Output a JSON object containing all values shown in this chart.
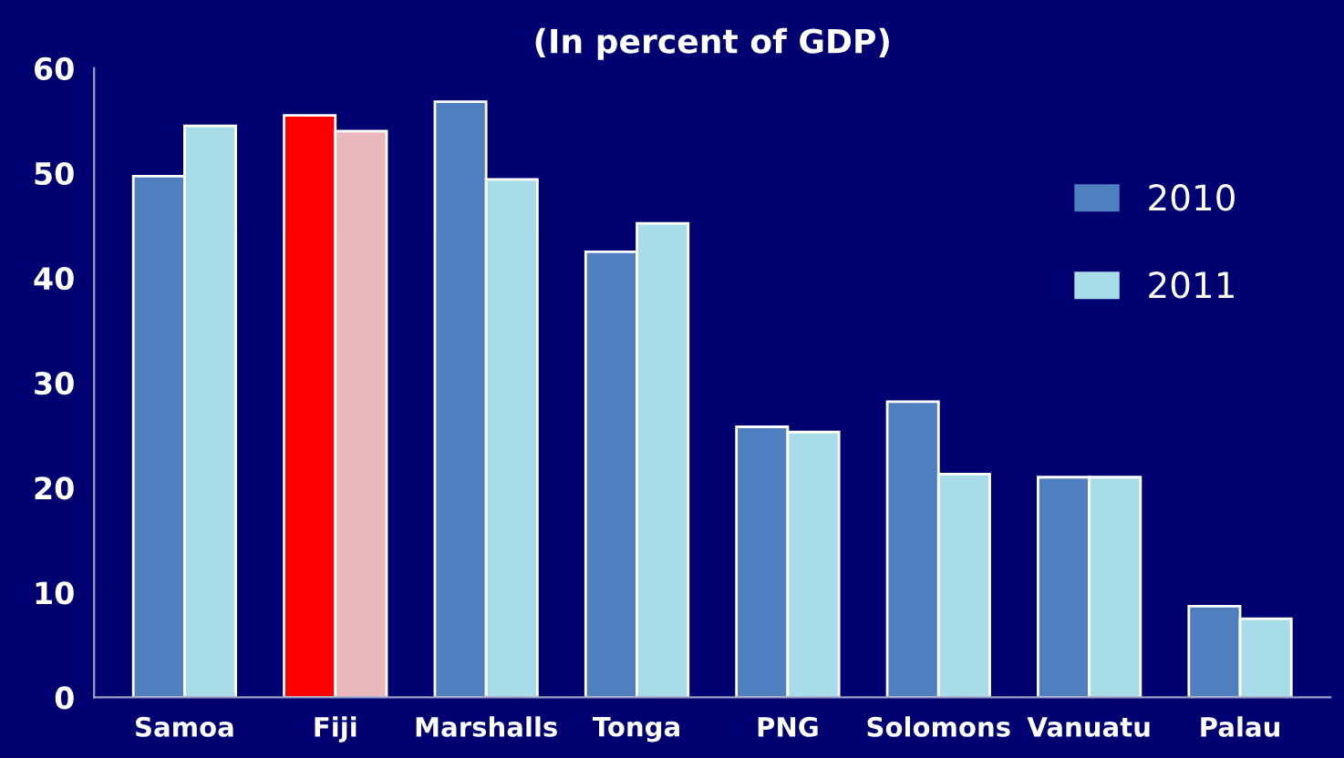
{
  "chart_data": {
    "type": "bar",
    "title": "(In percent of GDP)",
    "categories": [
      "Samoa",
      "Fiji",
      "Marshalls",
      "Tonga",
      "PNG",
      "Solomons",
      "Vanuatu",
      "Palau"
    ],
    "series": [
      {
        "name": "2010",
        "color": "#4f7fbf",
        "colors": [
          "#4f7fbf",
          "#ff0000",
          "#4f7fbf",
          "#4f7fbf",
          "#4f7fbf",
          "#4f7fbf",
          "#4f7fbf",
          "#4f7fbf"
        ],
        "values": [
          49.7,
          55.5,
          56.8,
          42.5,
          25.8,
          28.2,
          21,
          8.7
        ]
      },
      {
        "name": "2011",
        "color": "#a8dce8",
        "colors": [
          "#a8dce8",
          "#e8b8bc",
          "#a8dce8",
          "#a8dce8",
          "#a8dce8",
          "#a8dce8",
          "#a8dce8",
          "#a8dce8"
        ],
        "values": [
          54.5,
          54,
          49.4,
          45.2,
          25.3,
          21.3,
          21,
          7.5
        ]
      }
    ],
    "ylim": [
      0,
      60
    ],
    "yticks": [
      0,
      10,
      20,
      30,
      40,
      50,
      60
    ],
    "grid": false,
    "legend": "right"
  }
}
